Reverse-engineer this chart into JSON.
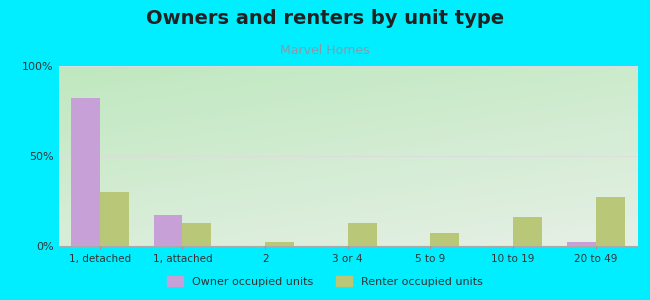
{
  "title": "Owners and renters by unit type",
  "subtitle": "Marvel Homes",
  "categories": [
    "1, detached",
    "1, attached",
    "2",
    "3 or 4",
    "5 to 9",
    "10 to 19",
    "20 to 49"
  ],
  "owner_values": [
    82,
    17,
    0,
    0,
    0,
    0,
    2
  ],
  "renter_values": [
    30,
    13,
    2,
    13,
    7,
    16,
    27
  ],
  "owner_color": "#c8a0d8",
  "renter_color": "#b8c878",
  "background_outer": "#00eeff",
  "ylim": [
    0,
    100
  ],
  "yticks": [
    0,
    50,
    100
  ],
  "ytick_labels": [
    "0%",
    "50%",
    "100%"
  ],
  "legend_owner": "Owner occupied units",
  "legend_renter": "Renter occupied units",
  "bar_width": 0.35,
  "title_fontsize": 14,
  "subtitle_fontsize": 9,
  "title_color": "#222222",
  "subtitle_color": "#8899aa",
  "tick_color": "#333333",
  "grid_color": "#dddddd"
}
